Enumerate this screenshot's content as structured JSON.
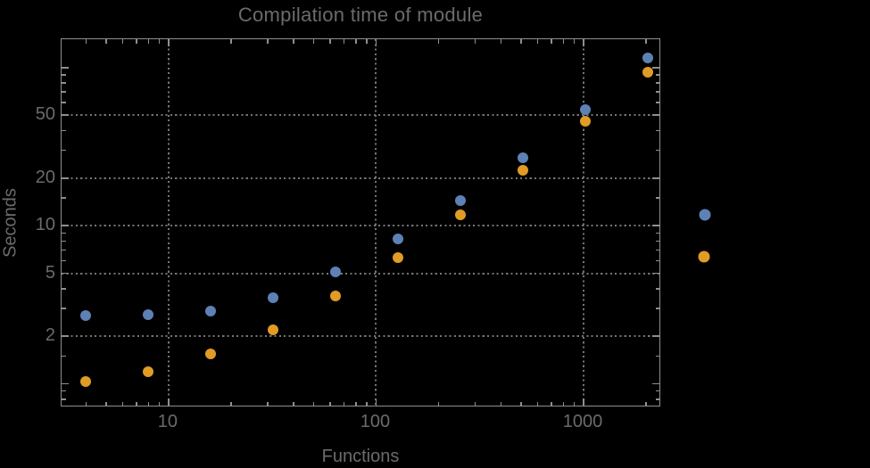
{
  "chart_data": {
    "type": "scatter",
    "title": "Compilation time of module",
    "xlabel": "Functions",
    "ylabel": "Seconds",
    "x_scale": "log",
    "y_scale": "log",
    "xlim": [
      3.05,
      2366
    ],
    "ylim": [
      0.71,
      151
    ],
    "grid": {
      "style": "dotted",
      "x_at": [
        10,
        100,
        1000
      ],
      "y_at": [
        2,
        5,
        10,
        20,
        50
      ]
    },
    "x_ticks": {
      "labeled": [
        10,
        100,
        1000
      ],
      "labels": [
        "10",
        "100",
        "1000"
      ],
      "minor": [
        4,
        5,
        6,
        7,
        8,
        9,
        20,
        30,
        40,
        50,
        60,
        70,
        80,
        90,
        200,
        300,
        400,
        500,
        600,
        700,
        800,
        900,
        2000
      ]
    },
    "y_ticks": {
      "labeled": [
        2,
        5,
        10,
        20,
        50
      ],
      "labels": [
        "2",
        "5",
        "10",
        "20",
        "50"
      ],
      "unlabeled_major": [
        1,
        100
      ],
      "minor": [
        0.8,
        0.9,
        1.5,
        3,
        4,
        6,
        7,
        8,
        9,
        15,
        30,
        40,
        60,
        70,
        80,
        90,
        150
      ]
    },
    "x": [
      4,
      8,
      16,
      32,
      64,
      128,
      256,
      512,
      1024,
      2048
    ],
    "series": [
      {
        "name": "series-1-blue",
        "color": "#5E81B5",
        "values": [
          2.7,
          2.75,
          2.9,
          3.5,
          5.1,
          8.2,
          14.4,
          27,
          54,
          115
        ]
      },
      {
        "name": "series-2-orange",
        "color": "#E09C24",
        "values": [
          1.03,
          1.2,
          1.55,
          2.2,
          3.6,
          6.3,
          11.7,
          22.4,
          46,
          93
        ]
      }
    ],
    "legend": {
      "position": "outside-right",
      "labels_visible": false,
      "markers": [
        {
          "series": "series-1-blue",
          "color": "#5E81B5"
        },
        {
          "series": "series-2-orange",
          "color": "#E09C24"
        }
      ]
    }
  },
  "styles": {
    "background": "#000000",
    "text_color": "#6b6b6b",
    "frame_color": "#8f8f8f",
    "grid_color": "#757575"
  }
}
